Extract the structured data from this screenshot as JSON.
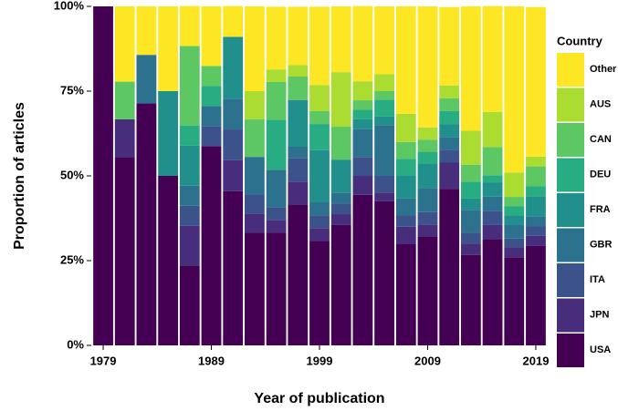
{
  "chart_data": {
    "type": "stacked_bar",
    "x_label": "Year of publication",
    "y_label": "Proportion of articles",
    "legend_title": "Country",
    "legend": "right",
    "x": [
      1979,
      1981,
      1983,
      1985,
      1987,
      1989,
      1991,
      1993,
      1995,
      1997,
      1999,
      2001,
      2003,
      2005,
      2007,
      2009,
      2011,
      2013,
      2015,
      2017,
      2019
    ],
    "xlim": [
      1977.9,
      2020.1
    ],
    "xticks": [
      1979,
      1989,
      1999,
      2009,
      2019
    ],
    "ylim": [
      0,
      100
    ],
    "yticks": [
      {
        "value": 0,
        "label": "0%"
      },
      {
        "value": 25,
        "label": "25%"
      },
      {
        "value": 50,
        "label": "50%"
      },
      {
        "value": 75,
        "label": "75%"
      },
      {
        "value": 100,
        "label": "100%"
      }
    ],
    "series": [
      {
        "name": "USA",
        "color": "#440154",
        "values": [
          100,
          55.6,
          71.4,
          50,
          23.5,
          58.8,
          45.5,
          33.3,
          33.3,
          41.4,
          30.8,
          35.5,
          44.4,
          42.5,
          30,
          32.1,
          46.2,
          26.7,
          31.3,
          26,
          29.4
        ]
      },
      {
        "name": "JPN",
        "color": "#472d7b",
        "values": [
          0,
          11.1,
          0,
          0,
          11.8,
          0,
          9.1,
          5.6,
          3.7,
          6.9,
          3.8,
          3.2,
          5.6,
          2.5,
          5,
          3.6,
          7.7,
          3.3,
          4.2,
          3,
          2.9
        ]
      },
      {
        "name": "ITA",
        "color": "#3b528b",
        "values": [
          0,
          0,
          0,
          0,
          5.9,
          5.9,
          9.1,
          5.6,
          3.7,
          6.9,
          3.8,
          3.2,
          5.6,
          5,
          3.3,
          3.6,
          3.8,
          3.3,
          4.2,
          2.5,
          2.9
        ]
      },
      {
        "name": "GBR",
        "color": "#2c728e",
        "values": [
          0,
          0,
          14.3,
          0,
          5.9,
          5.9,
          9.1,
          11.1,
          11.1,
          3.4,
          3.8,
          3.2,
          8.3,
          15,
          5,
          7.1,
          3.8,
          6.7,
          4.2,
          4.1,
          2.9
        ]
      },
      {
        "name": "FRA",
        "color": "#21908d",
        "values": [
          0,
          0,
          0,
          25,
          11.8,
          0,
          18.2,
          0,
          0,
          13.8,
          15.4,
          9.7,
          2.8,
          2.5,
          6.7,
          7.1,
          3.8,
          3.3,
          4.2,
          2.8,
          5.9
        ]
      },
      {
        "name": "DEU",
        "color": "#27ad81",
        "values": [
          0,
          0,
          0,
          0,
          5.9,
          5.9,
          0,
          0,
          14.8,
          0,
          7.7,
          0,
          2.8,
          5,
          5,
          3.6,
          3.8,
          5,
          2.1,
          2.6,
          2.9
        ]
      },
      {
        "name": "CAN",
        "color": "#5dc863",
        "values": [
          0,
          11.1,
          0,
          0,
          23.5,
          5.9,
          0,
          11.1,
          11.1,
          6.9,
          3.8,
          9.7,
          2.8,
          2.5,
          5,
          3.6,
          3.8,
          5,
          8.3,
          2.8,
          5.9
        ]
      },
      {
        "name": "AUS",
        "color": "#aadc32",
        "values": [
          0,
          0,
          0,
          0,
          0,
          0,
          0,
          8.3,
          3.7,
          3.4,
          7.7,
          16.1,
          5.6,
          5,
          8.3,
          3.6,
          3.8,
          10,
          10.4,
          7.2,
          2.9
        ]
      },
      {
        "name": "Other",
        "color": "#fde725",
        "values": [
          0,
          22.2,
          14.3,
          25,
          11.8,
          17.6,
          9.1,
          25,
          18.5,
          17.2,
          23.1,
          19.4,
          22.2,
          20,
          31.7,
          35.7,
          23.1,
          36.7,
          31.2,
          49,
          44.1
        ]
      }
    ]
  }
}
